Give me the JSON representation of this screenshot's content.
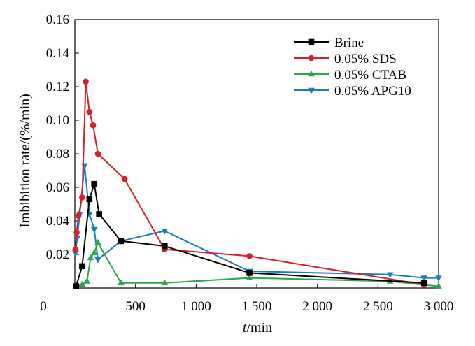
{
  "chart_data": {
    "type": "line",
    "xlabel": "t/min",
    "xlabel_italic_part": "t",
    "xlabel_rest": "/min",
    "ylabel": "Imbibition rate/(%/min)",
    "xlim": [
      0,
      3000
    ],
    "ylim": [
      0,
      0.16
    ],
    "x_ticks": [
      0,
      500,
      1000,
      1500,
      2000,
      2500,
      3000
    ],
    "x_tick_labels": [
      "0",
      "500",
      "1 000",
      "1 500",
      "2 000",
      "2 500",
      "3 000"
    ],
    "y_ticks": [
      0.02,
      0.04,
      0.06,
      0.08,
      0.1,
      0.12,
      0.14,
      0.16
    ],
    "y_tick_labels": [
      "0.02",
      "0.04",
      "0.06",
      "0.08",
      "0.10",
      "0.12",
      "0.14",
      "0.16"
    ],
    "grid": false,
    "legend_position": "top-right",
    "series": [
      {
        "name": "Brine",
        "color": "#000000",
        "marker": "square",
        "x": [
          10,
          60,
          120,
          160,
          200,
          380,
          740,
          1440,
          2880
        ],
        "y": [
          0.001,
          0.013,
          0.053,
          0.062,
          0.044,
          0.028,
          0.025,
          0.009,
          0.003
        ]
      },
      {
        "name": "0.05% SDS",
        "color": "#d42027",
        "marker": "circle",
        "x": [
          5,
          15,
          30,
          60,
          90,
          120,
          150,
          190,
          410,
          740,
          1440,
          2880
        ],
        "y": [
          0.023,
          0.033,
          0.043,
          0.054,
          0.123,
          0.105,
          0.097,
          0.08,
          0.065,
          0.023,
          0.019,
          0.002
        ]
      },
      {
        "name": "0.05% CTAB",
        "color": "#2ca64b",
        "marker": "triangle-up",
        "x": [
          10,
          60,
          100,
          130,
          160,
          190,
          380,
          740,
          1440,
          2600,
          3000
        ],
        "y": [
          0.001,
          0.002,
          0.004,
          0.018,
          0.021,
          0.027,
          0.003,
          0.003,
          0.006,
          0.004,
          0.001
        ]
      },
      {
        "name": "0.05% APG10",
        "color": "#1a7dc1",
        "marker": "triangle-down",
        "x": [
          5,
          20,
          40,
          80,
          120,
          160,
          190,
          380,
          740,
          1440,
          2600,
          2880,
          3000
        ],
        "y": [
          0.021,
          0.03,
          0.044,
          0.073,
          0.044,
          0.035,
          0.017,
          0.028,
          0.034,
          0.01,
          0.008,
          0.006,
          0.006
        ]
      }
    ]
  }
}
